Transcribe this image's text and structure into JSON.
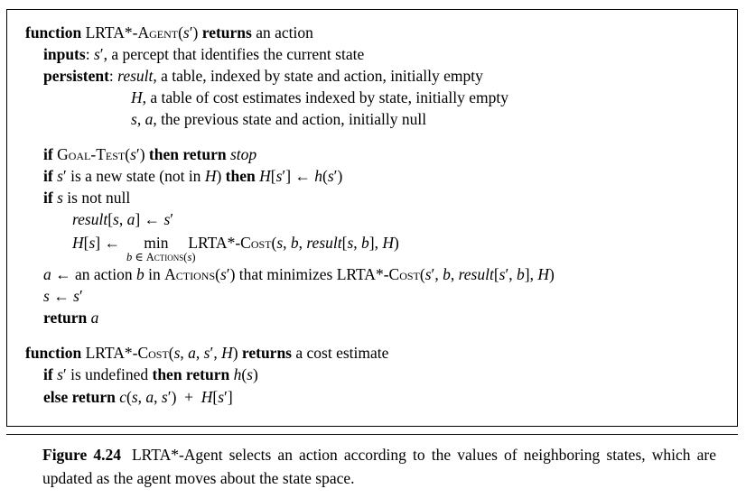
{
  "algorithm_lines": [
    "function LRTA*-Agent(s′) returns an action",
    "inputs: s′, a percept that identifies the current state",
    "persistent: result, a table, indexed by state and action, initially empty",
    "H, a table of cost estimates indexed by state, initially empty",
    "s, a, the previous state and action, initially null",
    "if Goal-Test(s′) then return stop",
    "if s′ is a new state (not in H) then H[s′] ← h(s′)",
    "if s is not null",
    "result[s, a] ← s′",
    "H[s] ← min LRTA*-Cost(s, b, result[s, b], H)",
    "b ∈ Actions(s)",
    "a ← an action b in Actions(s′) that minimizes LRTA*-Cost(s′, b, result[s′, b], H)",
    "s ← s′",
    "return a",
    "function LRTA*-Cost(s, a, s′, H) returns a cost estimate",
    "if s′ is undefined then return h(s)",
    "else return c(s, a, s′) + H[s′]"
  ],
  "caption": {
    "label": "Figure 4.24",
    "text": "LRTA*-Agent selects an action according to the values of neighboring states, which are updated as the agent moves about the state space."
  }
}
